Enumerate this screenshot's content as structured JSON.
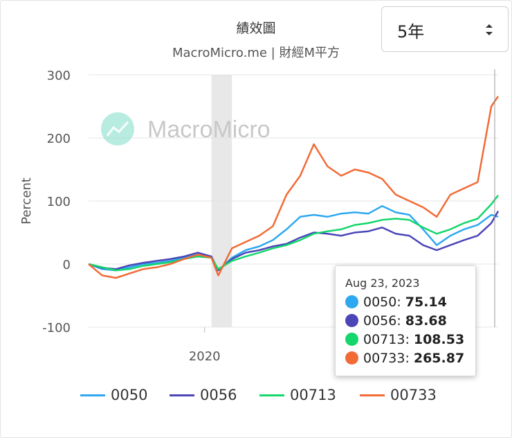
{
  "header": {
    "title": "績效圖",
    "subtitle": "MacroMicro.me | 財經M平方"
  },
  "range_selector": {
    "selected": "5年"
  },
  "watermark": {
    "text": "MacroMicro",
    "icon": "chart-logo-icon"
  },
  "tooltip": {
    "date": "Aug 23, 2023",
    "rows": [
      {
        "name": "0050",
        "value": "75.14",
        "color": "#2EA8F0"
      },
      {
        "name": "0056",
        "value": "83.68",
        "color": "#4B45B8"
      },
      {
        "name": "00713",
        "value": "108.53",
        "color": "#14D66B"
      },
      {
        "name": "00733",
        "value": "265.87",
        "color": "#F26A35"
      }
    ]
  },
  "chart_data": {
    "type": "line",
    "xlabel": "",
    "ylabel": "Percent",
    "ylim": [
      -100,
      300
    ],
    "yticks": [
      "300",
      "200",
      "100",
      "0",
      "-100"
    ],
    "xticks": [
      "2020"
    ],
    "x_range": [
      "2018-08",
      "2023-08"
    ],
    "shaded_band": [
      "2020-02",
      "2020-05"
    ],
    "grid": true,
    "legend": "bottom",
    "x": [
      "2018-08",
      "2018-10",
      "2018-12",
      "2019-02",
      "2019-04",
      "2019-06",
      "2019-08",
      "2019-10",
      "2019-12",
      "2020-02",
      "2020-03",
      "2020-05",
      "2020-07",
      "2020-09",
      "2020-11",
      "2021-01",
      "2021-03",
      "2021-05",
      "2021-07",
      "2021-09",
      "2021-11",
      "2022-01",
      "2022-03",
      "2022-05",
      "2022-07",
      "2022-09",
      "2022-11",
      "2023-01",
      "2023-03",
      "2023-05",
      "2023-07",
      "2023-08"
    ],
    "series": [
      {
        "name": "0050",
        "color": "#2EA8F0",
        "values": [
          0,
          -8,
          -10,
          -5,
          0,
          2,
          5,
          10,
          15,
          10,
          -10,
          10,
          22,
          28,
          38,
          55,
          75,
          78,
          75,
          80,
          82,
          80,
          92,
          82,
          78,
          55,
          30,
          45,
          55,
          62,
          78,
          75
        ]
      },
      {
        "name": "0056",
        "color": "#4B45B8",
        "values": [
          0,
          -6,
          -8,
          -2,
          2,
          5,
          8,
          12,
          18,
          12,
          -10,
          8,
          18,
          22,
          28,
          32,
          42,
          50,
          48,
          45,
          50,
          52,
          58,
          48,
          45,
          30,
          22,
          30,
          38,
          45,
          65,
          84
        ]
      },
      {
        "name": "00713",
        "color": "#14D66B",
        "values": [
          0,
          -5,
          -10,
          -8,
          -3,
          0,
          3,
          8,
          12,
          10,
          -8,
          5,
          12,
          18,
          25,
          30,
          38,
          48,
          52,
          55,
          62,
          65,
          70,
          72,
          70,
          58,
          48,
          55,
          65,
          72,
          95,
          109
        ]
      },
      {
        "name": "00733",
        "color": "#F26A35",
        "values": [
          0,
          -18,
          -22,
          -15,
          -8,
          -5,
          0,
          8,
          15,
          10,
          -18,
          25,
          35,
          45,
          60,
          110,
          140,
          190,
          155,
          140,
          150,
          145,
          135,
          110,
          100,
          90,
          75,
          110,
          120,
          130,
          250,
          266
        ]
      }
    ]
  },
  "legend": [
    {
      "name": "0050",
      "color": "#2EA8F0"
    },
    {
      "name": "0056",
      "color": "#4B45B8"
    },
    {
      "name": "00713",
      "color": "#14D66B"
    },
    {
      "name": "00733",
      "color": "#F26A35"
    }
  ]
}
